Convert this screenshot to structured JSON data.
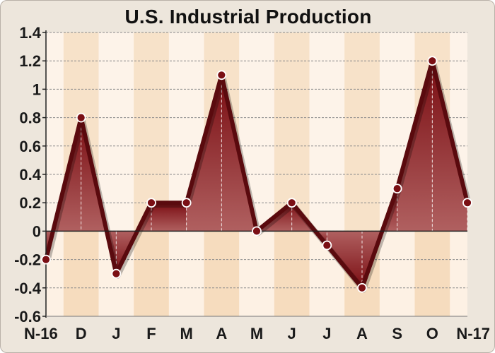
{
  "chart_data": {
    "type": "area",
    "title": "U.S. Industrial Production",
    "xlabel": "",
    "ylabel": "",
    "categories": [
      "N-16",
      "D",
      "J",
      "F",
      "M",
      "A",
      "M",
      "J",
      "J",
      "A",
      "S",
      "O",
      "N-17"
    ],
    "values": [
      -0.2,
      0.8,
      -0.3,
      0.2,
      0.2,
      1.1,
      0.0,
      0.2,
      -0.1,
      -0.4,
      0.3,
      1.2,
      0.2
    ],
    "ylim": [
      -0.6,
      1.4
    ],
    "yticks": [
      "1.4",
      "1.2",
      "1",
      "0.8",
      "0.6",
      "0.4",
      "0.2",
      "0",
      "-0.2",
      "-0.4",
      "-0.6"
    ],
    "grid": true,
    "legend": "none",
    "colors": {
      "line": "#5a0a0e",
      "fill_dark": "#7a0d12",
      "fill_light": "#b06060",
      "marker": "#7a0f14",
      "band_light": "#fdf1e4",
      "band_dark": "#f6dcbe",
      "grid": "#8a8a8a"
    }
  }
}
